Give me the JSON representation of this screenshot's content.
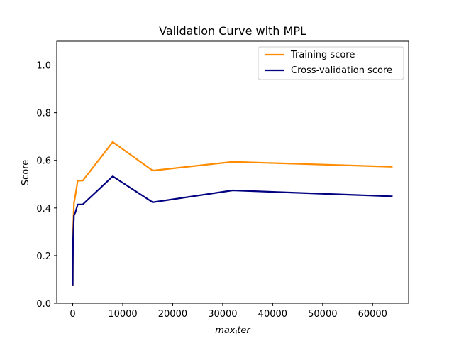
{
  "chart_data": {
    "type": "line",
    "title": "Validation Curve with MPL",
    "xlabel_main": "max",
    "xlabel_sub": "i",
    "xlabel_rest": "ter",
    "ylabel": "Score",
    "xlim": [
      -3200,
      67200
    ],
    "ylim": [
      0.0,
      1.1
    ],
    "x_ticks": [
      0,
      10000,
      20000,
      30000,
      40000,
      50000,
      60000
    ],
    "x_tick_labels": [
      "0",
      "10000",
      "20000",
      "30000",
      "40000",
      "50000",
      "60000"
    ],
    "y_ticks": [
      0.0,
      0.2,
      0.4,
      0.6,
      0.8,
      1.0
    ],
    "y_tick_labels": [
      "0.0",
      "0.2",
      "0.4",
      "0.6",
      "0.8",
      "1.0"
    ],
    "grid": false,
    "legend_position": "top-right",
    "x": [
      1,
      4,
      16,
      62,
      250,
      500,
      1000,
      2000,
      8000,
      16000,
      32000,
      64000
    ],
    "series": [
      {
        "name": "Training score",
        "color": "#ff8c00",
        "values": [
          0.075,
          0.09,
          0.16,
          0.3,
          0.42,
          0.45,
          0.515,
          0.515,
          0.677,
          0.557,
          0.594,
          0.573
        ]
      },
      {
        "name": "Cross-validation score",
        "color": "#000080",
        "values": [
          0.075,
          0.09,
          0.15,
          0.26,
          0.37,
          0.38,
          0.415,
          0.415,
          0.533,
          0.424,
          0.474,
          0.449
        ]
      }
    ]
  }
}
